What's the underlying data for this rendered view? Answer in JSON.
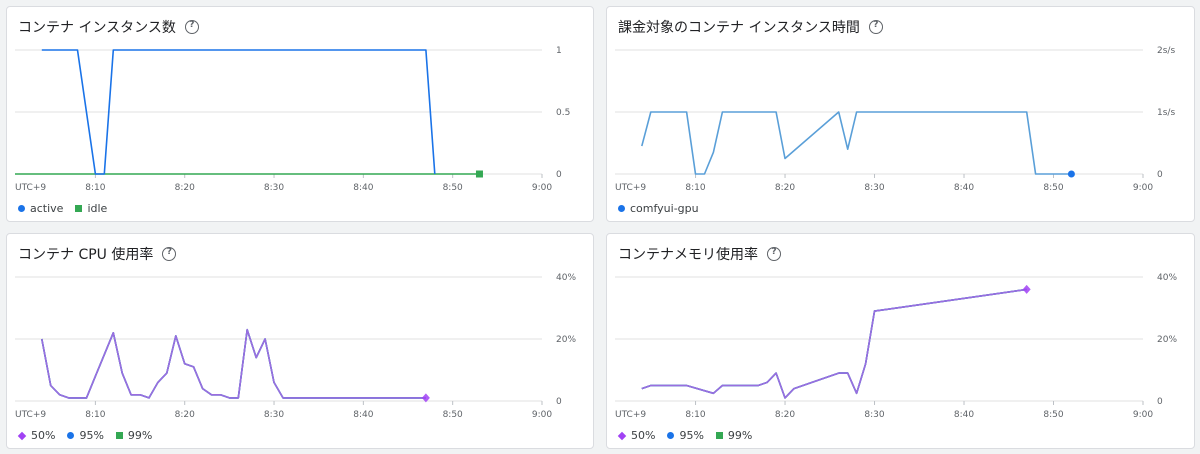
{
  "chart_data": [
    {
      "type": "line",
      "title": "コンテナ インスタンス数",
      "x_ticks": [
        "UTC+9",
        "8:10",
        "8:20",
        "8:30",
        "8:40",
        "8:50",
        "9:00"
      ],
      "y_ticks": [
        "1",
        "0.5",
        "0"
      ],
      "ylim": [
        0,
        1
      ],
      "xlim": [
        "8:01",
        "9:00"
      ],
      "legend_position": "bottom-left",
      "series": [
        {
          "name": "active",
          "color": "#1a73e8",
          "marker": "circle",
          "x": [
            "8:04",
            "8:08",
            "8:10",
            "8:11",
            "8:12",
            "8:47",
            "8:48"
          ],
          "y": [
            1,
            1,
            0,
            0,
            1,
            1,
            0
          ]
        },
        {
          "name": "idle",
          "color": "#34a853",
          "marker": "square",
          "x": [
            "8:01",
            "8:53"
          ],
          "y": [
            0,
            0
          ],
          "end_marker": true
        }
      ]
    },
    {
      "type": "line",
      "title": "課金対象のコンテナ インスタンス時間",
      "x_ticks": [
        "UTC+9",
        "8:10",
        "8:20",
        "8:30",
        "8:40",
        "8:50",
        "9:00"
      ],
      "y_ticks": [
        "2s/s",
        "1s/s",
        "0"
      ],
      "ylim": [
        0,
        2
      ],
      "xlim": [
        "8:01",
        "9:00"
      ],
      "legend_position": "bottom-left",
      "series": [
        {
          "name": "comfyui-gpu",
          "color": "#5a9fd8",
          "marker": "circle",
          "marker_color": "#1a73e8",
          "x": [
            "8:04",
            "8:05",
            "8:09",
            "8:10",
            "8:11",
            "8:12",
            "8:13",
            "8:19",
            "8:20",
            "8:26",
            "8:27",
            "8:28",
            "8:47",
            "8:48",
            "8:52"
          ],
          "y": [
            0.45,
            1,
            1,
            0,
            0,
            0.35,
            1,
            1,
            0.25,
            1,
            0.4,
            1,
            1,
            0,
            0
          ],
          "end_marker": true
        }
      ]
    },
    {
      "type": "line",
      "title": "コンテナ CPU 使用率",
      "x_ticks": [
        "UTC+9",
        "8:10",
        "8:20",
        "8:30",
        "8:40",
        "8:50",
        "9:00"
      ],
      "y_ticks": [
        "40%",
        "20%",
        "0"
      ],
      "ylim": [
        0,
        40
      ],
      "xlim": [
        "8:01",
        "9:00"
      ],
      "legend_position": "bottom-left",
      "series": [
        {
          "name": "50%",
          "color": "#9b6de0",
          "marker": "diamond",
          "x": [
            "8:04",
            "8:05",
            "8:06",
            "8:07",
            "8:09",
            "8:10",
            "8:12",
            "8:13",
            "8:14",
            "8:15",
            "8:16",
            "8:17",
            "8:18",
            "8:19",
            "8:20",
            "8:21",
            "8:22",
            "8:23",
            "8:24",
            "8:25",
            "8:26",
            "8:27",
            "8:28",
            "8:29",
            "8:30",
            "8:31",
            "8:47"
          ],
          "y": [
            20,
            5,
            2,
            1,
            1,
            8,
            22,
            9,
            2,
            2,
            1,
            6,
            9,
            21,
            12,
            11,
            4,
            2,
            2,
            1,
            1,
            23,
            14,
            20,
            6,
            1,
            1
          ],
          "end_marker": true
        },
        {
          "name": "95%",
          "color": "#1a73e8",
          "marker": "circle",
          "x": [
            "8:04",
            "8:05",
            "8:06",
            "8:07",
            "8:09",
            "8:10",
            "8:12",
            "8:13",
            "8:14",
            "8:15",
            "8:16",
            "8:17",
            "8:18",
            "8:19",
            "8:20",
            "8:21",
            "8:22",
            "8:23",
            "8:24",
            "8:25",
            "8:26",
            "8:27",
            "8:28",
            "8:29",
            "8:30",
            "8:31",
            "8:47"
          ],
          "y": [
            20,
            5,
            2,
            1,
            1,
            8,
            22,
            9,
            2,
            2,
            1,
            6,
            9,
            21,
            12,
            11,
            4,
            2,
            2,
            1,
            1,
            23,
            14,
            20,
            6,
            1,
            1
          ]
        },
        {
          "name": "99%",
          "color": "#34a853",
          "marker": "square",
          "x": [
            "8:04",
            "8:05",
            "8:06",
            "8:07",
            "8:09",
            "8:10",
            "8:12",
            "8:13",
            "8:14",
            "8:15",
            "8:16",
            "8:17",
            "8:18",
            "8:19",
            "8:20",
            "8:21",
            "8:22",
            "8:23",
            "8:24",
            "8:25",
            "8:26",
            "8:27",
            "8:28",
            "8:29",
            "8:30",
            "8:31",
            "8:47"
          ],
          "y": [
            20,
            5,
            2,
            1,
            1,
            8,
            22,
            9,
            2,
            2,
            1,
            6,
            9,
            21,
            12,
            11,
            4,
            2,
            2,
            1,
            1,
            23,
            14,
            20,
            6,
            1,
            1
          ]
        }
      ]
    },
    {
      "type": "line",
      "title": "コンテナメモリ使用率",
      "x_ticks": [
        "UTC+9",
        "8:10",
        "8:20",
        "8:30",
        "8:40",
        "8:50",
        "9:00"
      ],
      "y_ticks": [
        "40%",
        "20%",
        "0"
      ],
      "ylim": [
        0,
        40
      ],
      "xlim": [
        "8:01",
        "9:00"
      ],
      "legend_position": "bottom-left",
      "series": [
        {
          "name": "50%",
          "color": "#9b6de0",
          "marker": "diamond",
          "x": [
            "8:04",
            "8:05",
            "8:09",
            "8:12",
            "8:13",
            "8:17",
            "8:18",
            "8:19",
            "8:20",
            "8:21",
            "8:26",
            "8:27",
            "8:28",
            "8:29",
            "8:30",
            "8:47"
          ],
          "y": [
            4,
            5,
            5,
            2.5,
            5,
            5,
            6,
            9,
            1,
            4,
            9,
            9,
            2.5,
            12,
            29,
            36
          ],
          "end_marker": true
        },
        {
          "name": "95%",
          "color": "#1a73e8",
          "marker": "circle",
          "x": [
            "8:04",
            "8:05",
            "8:09",
            "8:12",
            "8:13",
            "8:17",
            "8:18",
            "8:19",
            "8:20",
            "8:21",
            "8:26",
            "8:27",
            "8:28",
            "8:29",
            "8:30",
            "8:47"
          ],
          "y": [
            4,
            5,
            5,
            2.5,
            5,
            5,
            6,
            9,
            1,
            4,
            9,
            9,
            2.5,
            12,
            29,
            36
          ]
        },
        {
          "name": "99%",
          "color": "#34a853",
          "marker": "square",
          "x": [
            "8:04",
            "8:05",
            "8:09",
            "8:12",
            "8:13",
            "8:17",
            "8:18",
            "8:19",
            "8:20",
            "8:21",
            "8:26",
            "8:27",
            "8:28",
            "8:29",
            "8:30",
            "8:47"
          ],
          "y": [
            4,
            5,
            5,
            2.5,
            5,
            5,
            6,
            9,
            1,
            4,
            9,
            9,
            2.5,
            12,
            29,
            36
          ]
        }
      ]
    }
  ]
}
